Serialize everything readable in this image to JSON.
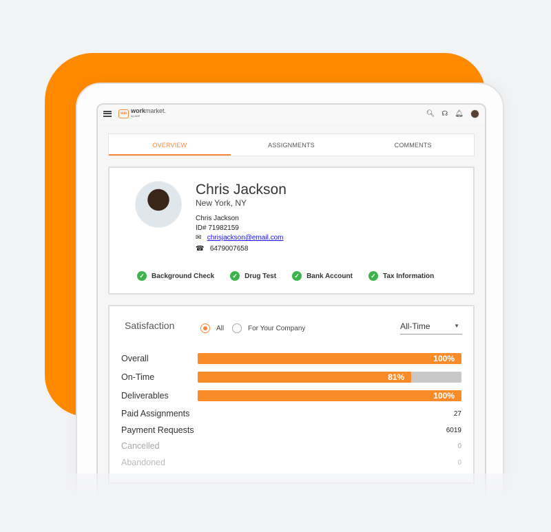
{
  "colors": {
    "accent": "#f98b28",
    "brand_orange": "#ff8a00",
    "check": "#3cb44b"
  },
  "header": {
    "logo_text_bold": "work",
    "logo_text": "market.",
    "logo_sub": "by ADP",
    "icons": [
      "menu-icon",
      "search-icon",
      "headset-icon",
      "bell-icon",
      "avatar"
    ]
  },
  "tabs": [
    {
      "label": "OVERVIEW",
      "active": true
    },
    {
      "label": "ASSIGNMENTS"
    },
    {
      "label": "COMMENTS"
    }
  ],
  "profile": {
    "name": "Chris Jackson",
    "location": "New York, NY",
    "full_name": "Chris Jackson",
    "id": "ID# 71982159",
    "email": "chrisjackson@email.com",
    "phone": "6479007658",
    "checks": [
      "Background Check",
      "Drug Test",
      "Bank Account",
      "Tax Information"
    ]
  },
  "satisfaction": {
    "title": "Satisfaction",
    "radio_all": "All",
    "radio_company": "For Your Company",
    "selected": "All",
    "period": "All-Time",
    "bars": [
      {
        "label": "Overall",
        "value": 100,
        "text": "100%"
      },
      {
        "label": "On-Time",
        "value": 81,
        "text": "81%"
      },
      {
        "label": "Deliverables",
        "value": 100,
        "text": "100%"
      }
    ],
    "stats": [
      {
        "label": "Paid Assignments",
        "value": "27"
      },
      {
        "label": "Payment Requests",
        "value": "6019"
      },
      {
        "label": "Cancelled",
        "value": "0"
      },
      {
        "label": "Abandoned",
        "value": "0"
      }
    ]
  }
}
